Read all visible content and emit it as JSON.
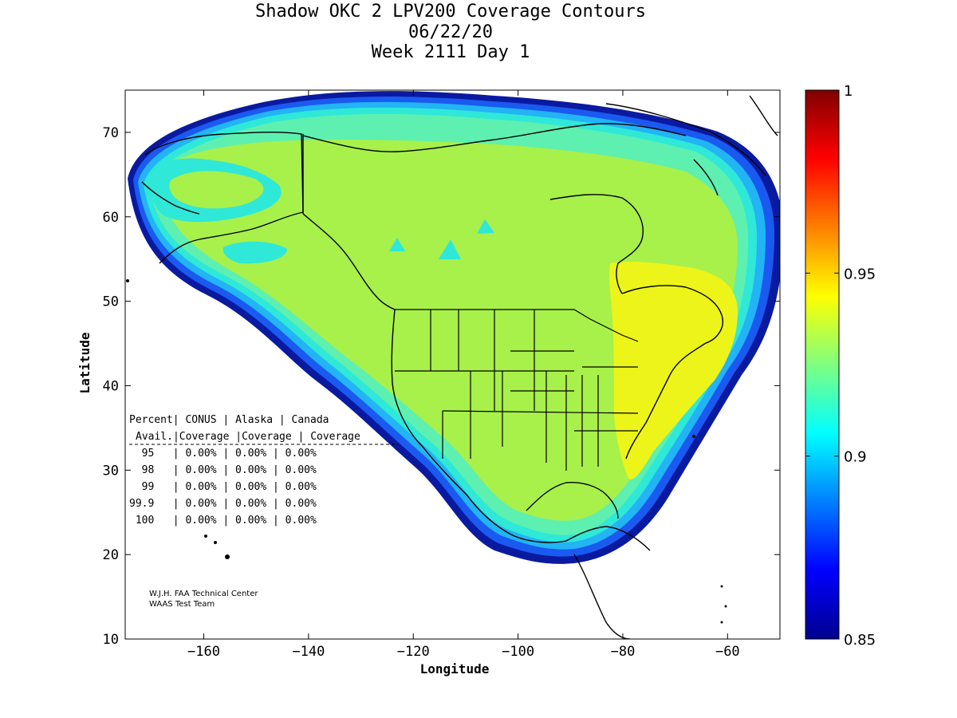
{
  "title": {
    "line1": "Shadow OKC 2 LPV200 Coverage Contours",
    "line2": "06/22/20",
    "line3": "Week 2111 Day 1"
  },
  "chart_data": {
    "type": "heatmap",
    "xlabel": "Longitude",
    "ylabel": "Latitude",
    "xlim": [
      -175,
      -50
    ],
    "ylim": [
      10,
      75
    ],
    "xticks": [
      -160,
      -140,
      -120,
      -100,
      -80,
      -60
    ],
    "yticks": [
      10,
      20,
      30,
      40,
      50,
      60,
      70
    ],
    "colorbar": {
      "range": [
        0.85,
        1
      ],
      "ticks": [
        "0.85",
        "0.9",
        "0.95",
        "1"
      ],
      "colormap": "jet"
    },
    "dominant_values": {
      "interior": 0.93,
      "east": 0.94,
      "edge": 0.9
    }
  },
  "table": {
    "header1": [
      "Percent",
      "CONUS",
      "Alaska",
      "Canada"
    ],
    "header2": [
      "Avail.",
      "Coverage",
      "Coverage",
      "Coverage"
    ],
    "rows": [
      [
        "95",
        "0.00%",
        "0.00%",
        "0.00%"
      ],
      [
        "98",
        "0.00%",
        "0.00%",
        "0.00%"
      ],
      [
        "99",
        "0.00%",
        "0.00%",
        "0.00%"
      ],
      [
        "99.9",
        "0.00%",
        "0.00%",
        "0.00%"
      ],
      [
        "100",
        "0.00%",
        "0.00%",
        "0.00%"
      ]
    ]
  },
  "credit": {
    "line1": "W.J.H. FAA Technical Center",
    "line2": "WAAS Test Team"
  },
  "colors": {
    "lime": "#a8f04a",
    "yellow": "#ecf41a",
    "cyan": "#2fe8d8",
    "blue": "#1a5af0",
    "navy": "#0a1aa0"
  }
}
